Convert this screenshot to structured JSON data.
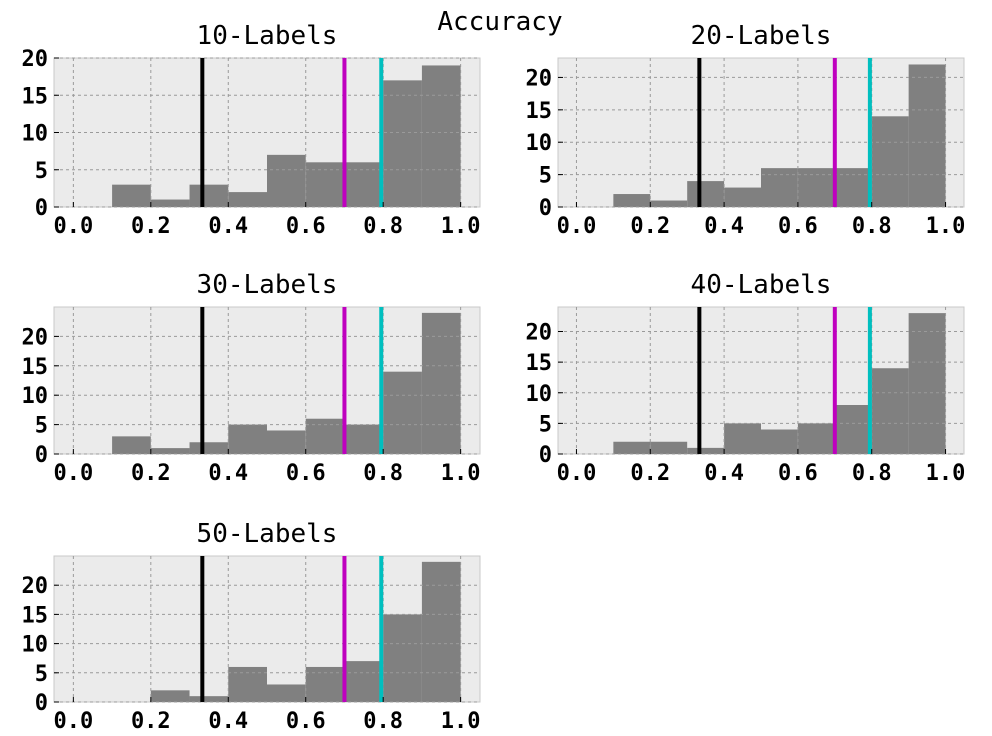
{
  "figure": {
    "title": "Accuracy"
  },
  "colors": {
    "plot_bg": "#ebebeb",
    "bar": "#808080",
    "grid": "#9a9a9a",
    "vline_black": "#000000",
    "vline_magenta": "#bf00bf",
    "vline_cyan": "#00bfbf"
  },
  "chart_data": [
    {
      "type": "bar",
      "title": "10-Labels",
      "bin_edges": [
        0.0,
        0.1,
        0.2,
        0.3,
        0.4,
        0.5,
        0.6,
        0.7,
        0.8,
        0.9,
        1.0
      ],
      "values": [
        0,
        3,
        1,
        3,
        2,
        7,
        6,
        6,
        17,
        19
      ],
      "xlim": [
        -0.05,
        1.05
      ],
      "ylim": [
        0,
        20
      ],
      "xticks": [
        "0.0",
        "0.2",
        "0.4",
        "0.6",
        "0.8",
        "1.0"
      ],
      "yticks": [
        "0",
        "5",
        "10",
        "15",
        "20"
      ],
      "vlines": [
        0.333,
        0.7,
        0.795
      ],
      "grid": true
    },
    {
      "type": "bar",
      "title": "20-Labels",
      "bin_edges": [
        0.0,
        0.1,
        0.2,
        0.3,
        0.4,
        0.5,
        0.6,
        0.7,
        0.8,
        0.9,
        1.0
      ],
      "values": [
        0,
        2,
        1,
        4,
        3,
        6,
        6,
        6,
        14,
        22
      ],
      "xlim": [
        -0.05,
        1.05
      ],
      "ylim": [
        0,
        23
      ],
      "xticks": [
        "0.0",
        "0.2",
        "0.4",
        "0.6",
        "0.8",
        "1.0"
      ],
      "yticks": [
        "0",
        "5",
        "10",
        "15",
        "20"
      ],
      "vlines": [
        0.333,
        0.7,
        0.795
      ],
      "grid": true
    },
    {
      "type": "bar",
      "title": "30-Labels",
      "bin_edges": [
        0.0,
        0.1,
        0.2,
        0.3,
        0.4,
        0.5,
        0.6,
        0.7,
        0.8,
        0.9,
        1.0
      ],
      "values": [
        0,
        3,
        1,
        2,
        5,
        4,
        6,
        5,
        14,
        24
      ],
      "xlim": [
        -0.05,
        1.05
      ],
      "ylim": [
        0,
        25
      ],
      "xticks": [
        "0.0",
        "0.2",
        "0.4",
        "0.6",
        "0.8",
        "1.0"
      ],
      "yticks": [
        "0",
        "5",
        "10",
        "15",
        "20"
      ],
      "vlines": [
        0.333,
        0.7,
        0.795
      ],
      "grid": true
    },
    {
      "type": "bar",
      "title": "40-Labels",
      "bin_edges": [
        0.0,
        0.1,
        0.2,
        0.3,
        0.4,
        0.5,
        0.6,
        0.7,
        0.8,
        0.9,
        1.0
      ],
      "values": [
        0,
        2,
        2,
        1,
        5,
        4,
        5,
        8,
        14,
        23
      ],
      "xlim": [
        -0.05,
        1.05
      ],
      "ylim": [
        0,
        24
      ],
      "xticks": [
        "0.0",
        "0.2",
        "0.4",
        "0.6",
        "0.8",
        "1.0"
      ],
      "yticks": [
        "0",
        "5",
        "10",
        "15",
        "20"
      ],
      "vlines": [
        0.333,
        0.7,
        0.795
      ],
      "grid": true
    },
    {
      "type": "bar",
      "title": "50-Labels",
      "bin_edges": [
        0.0,
        0.1,
        0.2,
        0.3,
        0.4,
        0.5,
        0.6,
        0.7,
        0.8,
        0.9,
        1.0
      ],
      "values": [
        0,
        0,
        2,
        1,
        6,
        3,
        6,
        7,
        15,
        24
      ],
      "xlim": [
        -0.05,
        1.05
      ],
      "ylim": [
        0,
        25
      ],
      "xticks": [
        "0.0",
        "0.2",
        "0.4",
        "0.6",
        "0.8",
        "1.0"
      ],
      "yticks": [
        "0",
        "5",
        "10",
        "15",
        "20"
      ],
      "vlines": [
        0.333,
        0.7,
        0.795
      ],
      "grid": true
    }
  ]
}
